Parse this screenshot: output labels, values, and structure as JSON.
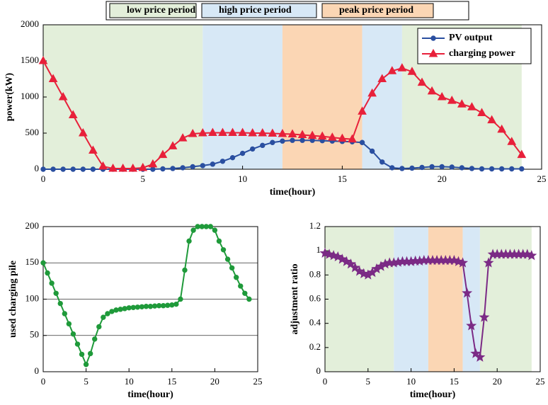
{
  "chart_data": [
    {
      "type": "line",
      "xlabel": "time(hour)",
      "ylabel": "power(kW)",
      "xlim": [
        0,
        25
      ],
      "xticks": [
        0,
        5,
        10,
        15,
        20,
        25
      ],
      "ylim": [
        0,
        2000
      ],
      "yticks": [
        0,
        500,
        1000,
        1500,
        2000
      ],
      "grid": false,
      "legend": "upper right",
      "band_legend": [
        {
          "name": "low price period",
          "color": "#e3efda"
        },
        {
          "name": "high price period",
          "color": "#d7e8f6"
        },
        {
          "name": "peak price period",
          "color": "#fbd6b4"
        }
      ],
      "bands": [
        {
          "start": 0,
          "end": 8,
          "color": "#e3efda"
        },
        {
          "start": 8,
          "end": 12,
          "color": "#d7e8f6"
        },
        {
          "start": 12,
          "end": 16,
          "color": "#fbd6b4"
        },
        {
          "start": 16,
          "end": 18,
          "color": "#d7e8f6"
        },
        {
          "start": 18,
          "end": 24,
          "color": "#e3efda"
        }
      ],
      "x": [
        0,
        0.5,
        1,
        1.5,
        2,
        2.5,
        3,
        3.5,
        4,
        4.5,
        5,
        5.5,
        6,
        6.5,
        7,
        7.5,
        8,
        8.5,
        9,
        9.5,
        10,
        10.5,
        11,
        11.5,
        12,
        12.5,
        13,
        13.5,
        14,
        14.5,
        15,
        15.5,
        16,
        16.5,
        17,
        17.5,
        18,
        18.5,
        19,
        19.5,
        20,
        20.5,
        21,
        21.5,
        22,
        22.5,
        23,
        23.5,
        24
      ],
      "series": [
        {
          "name": "PV output",
          "color": "#2a4fa0",
          "marker": "circle",
          "values": [
            0,
            0,
            0,
            0,
            0,
            0,
            0,
            0,
            0,
            0,
            0,
            0,
            5,
            10,
            20,
            35,
            50,
            70,
            110,
            160,
            220,
            280,
            330,
            370,
            390,
            400,
            400,
            400,
            395,
            390,
            385,
            380,
            370,
            250,
            100,
            20,
            10,
            15,
            25,
            35,
            35,
            30,
            20,
            10,
            5,
            5,
            5,
            5,
            5
          ]
        },
        {
          "name": "charging power",
          "color": "#e8203a",
          "marker": "triangle",
          "values": [
            1500,
            1250,
            1000,
            750,
            500,
            260,
            40,
            10,
            10,
            10,
            20,
            70,
            200,
            320,
            430,
            490,
            500,
            505,
            505,
            505,
            505,
            500,
            500,
            495,
            490,
            485,
            475,
            465,
            455,
            440,
            425,
            415,
            800,
            1050,
            1250,
            1360,
            1400,
            1350,
            1200,
            1080,
            1000,
            950,
            900,
            860,
            780,
            680,
            550,
            380,
            200
          ]
        }
      ]
    },
    {
      "type": "line",
      "xlabel": "time(hour)",
      "ylabel": "used charging pile",
      "xlim": [
        0,
        25
      ],
      "xticks": [
        0,
        5,
        10,
        15,
        20,
        25
      ],
      "ylim": [
        0,
        200
      ],
      "yticks": [
        0,
        50,
        100,
        150,
        200
      ],
      "grid": true,
      "x": [
        0,
        0.5,
        1,
        1.5,
        2,
        2.5,
        3,
        3.5,
        4,
        4.5,
        5,
        5.5,
        6,
        6.5,
        7,
        7.5,
        8,
        8.5,
        9,
        9.5,
        10,
        10.5,
        11,
        11.5,
        12,
        12.5,
        13,
        13.5,
        14,
        14.5,
        15,
        15.5,
        16,
        16.5,
        17,
        17.5,
        18,
        18.5,
        19,
        19.5,
        20,
        20.5,
        21,
        21.5,
        22,
        22.5,
        23,
        23.5,
        24
      ],
      "series": [
        {
          "color": "#1f9a3a",
          "marker": "circle",
          "values": [
            150,
            136,
            122,
            108,
            94,
            80,
            66,
            52,
            38,
            24,
            10,
            25,
            45,
            62,
            75,
            80,
            83,
            85,
            86,
            87,
            88,
            88.5,
            89,
            89.5,
            90,
            90,
            90.5,
            91,
            91,
            91.5,
            92,
            93,
            100,
            140,
            180,
            195,
            200,
            200,
            200,
            200,
            195,
            180,
            168,
            155,
            143,
            130,
            118,
            108,
            100
          ]
        }
      ]
    },
    {
      "type": "line",
      "xlabel": "time(hour)",
      "ylabel": "adjustment ratio",
      "xlim": [
        0,
        25
      ],
      "xticks": [
        0,
        5,
        10,
        15,
        20,
        25
      ],
      "ylim": [
        0,
        1.2
      ],
      "yticks": [
        0,
        0.2,
        0.4,
        0.6,
        0.8,
        1,
        1.2
      ],
      "grid": false,
      "bands": [
        {
          "start": 0,
          "end": 8,
          "color": "#e3efda"
        },
        {
          "start": 8,
          "end": 12,
          "color": "#d7e8f6"
        },
        {
          "start": 12,
          "end": 16,
          "color": "#fbd6b4"
        },
        {
          "start": 16,
          "end": 18,
          "color": "#d7e8f6"
        },
        {
          "start": 18,
          "end": 24,
          "color": "#e3efda"
        }
      ],
      "x": [
        0,
        0.5,
        1,
        1.5,
        2,
        2.5,
        3,
        3.5,
        4,
        4.5,
        5,
        5.5,
        6,
        6.5,
        7,
        7.5,
        8,
        8.5,
        9,
        9.5,
        10,
        10.5,
        11,
        11.5,
        12,
        12.5,
        13,
        13.5,
        14,
        14.5,
        15,
        15.5,
        16,
        16.5,
        17,
        17.5,
        18,
        18.5,
        19,
        19.5,
        20,
        20.5,
        21,
        21.5,
        22,
        22.5,
        23,
        23.5,
        24
      ],
      "series": [
        {
          "color": "#7b2a85",
          "marker": "star",
          "values": [
            0.98,
            0.97,
            0.96,
            0.95,
            0.93,
            0.91,
            0.89,
            0.86,
            0.83,
            0.81,
            0.8,
            0.82,
            0.85,
            0.87,
            0.89,
            0.9,
            0.9,
            0.905,
            0.91,
            0.91,
            0.91,
            0.915,
            0.915,
            0.92,
            0.92,
            0.92,
            0.92,
            0.92,
            0.92,
            0.92,
            0.92,
            0.91,
            0.9,
            0.65,
            0.38,
            0.15,
            0.12,
            0.45,
            0.9,
            0.97,
            0.97,
            0.97,
            0.97,
            0.97,
            0.97,
            0.97,
            0.97,
            0.97,
            0.96
          ]
        }
      ]
    }
  ]
}
